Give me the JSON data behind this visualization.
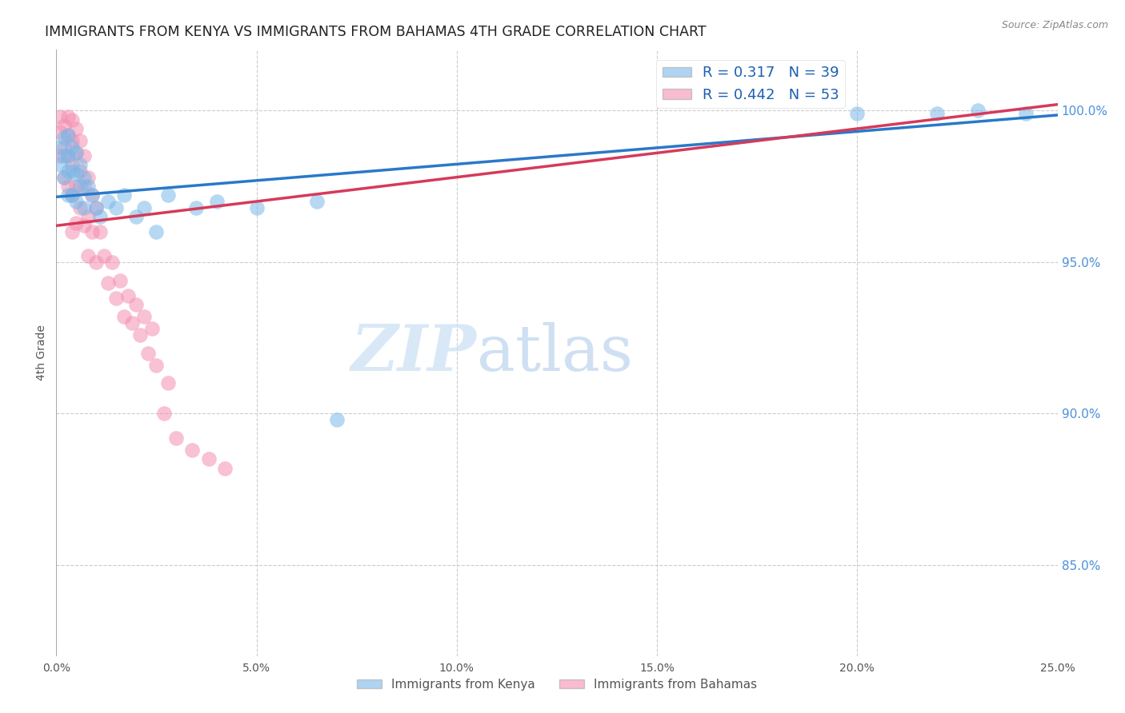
{
  "title": "IMMIGRANTS FROM KENYA VS IMMIGRANTS FROM BAHAMAS 4TH GRADE CORRELATION CHART",
  "source": "Source: ZipAtlas.com",
  "ylabel": "4th Grade",
  "legend_labels": [
    "Immigrants from Kenya",
    "Immigrants from Bahamas"
  ],
  "kenya_R": 0.317,
  "kenya_N": 39,
  "bahamas_R": 0.442,
  "bahamas_N": 53,
  "xlim": [
    0.0,
    0.25
  ],
  "ylim": [
    0.82,
    1.02
  ],
  "right_yticks": [
    0.85,
    0.9,
    0.95,
    1.0
  ],
  "xtick_vals": [
    0.0,
    0.05,
    0.1,
    0.15,
    0.2,
    0.25
  ],
  "kenya_color": "#7ab8e8",
  "bahamas_color": "#f48fb1",
  "kenya_line_color": "#2979c8",
  "bahamas_line_color": "#d63a5a",
  "kenya_x": [
    0.001,
    0.001,
    0.002,
    0.002,
    0.002,
    0.003,
    0.003,
    0.003,
    0.003,
    0.004,
    0.004,
    0.004,
    0.005,
    0.005,
    0.005,
    0.006,
    0.006,
    0.007,
    0.007,
    0.008,
    0.009,
    0.01,
    0.011,
    0.013,
    0.015,
    0.017,
    0.02,
    0.022,
    0.025,
    0.028,
    0.035,
    0.04,
    0.05,
    0.065,
    0.07,
    0.2,
    0.22,
    0.23,
    0.242
  ],
  "kenya_y": [
    0.988,
    0.982,
    0.991,
    0.985,
    0.978,
    0.992,
    0.985,
    0.98,
    0.972,
    0.988,
    0.98,
    0.972,
    0.986,
    0.979,
    0.97,
    0.982,
    0.975,
    0.978,
    0.968,
    0.975,
    0.972,
    0.968,
    0.965,
    0.97,
    0.968,
    0.972,
    0.965,
    0.968,
    0.96,
    0.972,
    0.968,
    0.97,
    0.968,
    0.97,
    0.898,
    0.999,
    0.999,
    1.0,
    0.999
  ],
  "bahamas_x": [
    0.001,
    0.001,
    0.001,
    0.002,
    0.002,
    0.002,
    0.003,
    0.003,
    0.003,
    0.003,
    0.004,
    0.004,
    0.004,
    0.004,
    0.004,
    0.005,
    0.005,
    0.005,
    0.005,
    0.006,
    0.006,
    0.006,
    0.007,
    0.007,
    0.007,
    0.008,
    0.008,
    0.008,
    0.009,
    0.009,
    0.01,
    0.01,
    0.011,
    0.012,
    0.013,
    0.014,
    0.015,
    0.016,
    0.017,
    0.018,
    0.019,
    0.02,
    0.021,
    0.022,
    0.023,
    0.024,
    0.025,
    0.027,
    0.028,
    0.03,
    0.034,
    0.038,
    0.042
  ],
  "bahamas_y": [
    0.998,
    0.993,
    0.985,
    0.995,
    0.988,
    0.978,
    0.998,
    0.992,
    0.985,
    0.975,
    0.997,
    0.99,
    0.982,
    0.972,
    0.96,
    0.994,
    0.986,
    0.975,
    0.963,
    0.99,
    0.98,
    0.968,
    0.985,
    0.975,
    0.962,
    0.978,
    0.965,
    0.952,
    0.972,
    0.96,
    0.968,
    0.95,
    0.96,
    0.952,
    0.943,
    0.95,
    0.938,
    0.944,
    0.932,
    0.939,
    0.93,
    0.936,
    0.926,
    0.932,
    0.92,
    0.928,
    0.916,
    0.9,
    0.91,
    0.892,
    0.888,
    0.885,
    0.882
  ],
  "watermark_zip": "ZIP",
  "watermark_atlas": "atlas",
  "background_color": "#ffffff",
  "grid_color": "#cccccc",
  "kenya_trend": [
    0.9715,
    0.9985
  ],
  "bahamas_trend": [
    0.962,
    1.002
  ]
}
